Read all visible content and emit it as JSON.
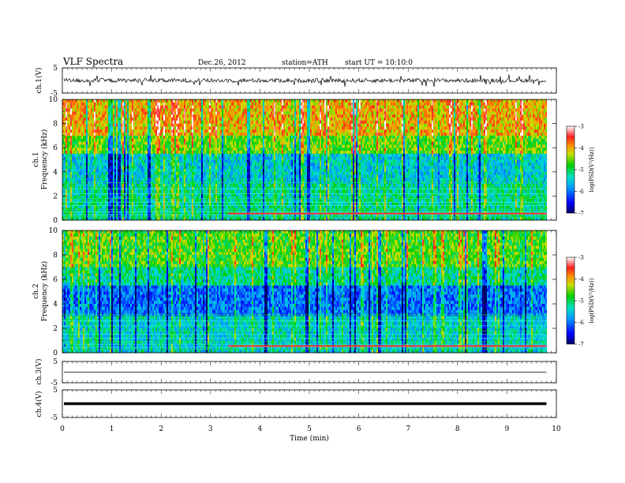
{
  "header": {
    "title": "VLF  Spectra",
    "date": "Dec.26, 2012",
    "station": "station=ATH",
    "start": "start  UT  =    10:10:0"
  },
  "chart_data": {
    "type": "heatmap",
    "xlabel": "Time  (min)",
    "xlim": [
      0,
      10
    ],
    "x_ticks": [
      "0",
      "1",
      "2",
      "3",
      "4",
      "5",
      "6",
      "7",
      "8",
      "9",
      "10"
    ],
    "data_extent_min": 9.8,
    "panels": [
      {
        "id": "ch1-waveform",
        "type": "line",
        "ylabel": "ch.1(V)",
        "ylim": [
          -5,
          5
        ],
        "y_ticks": [
          "5",
          "-5"
        ],
        "baseline": 0,
        "amplitude_range": [
          -2.5,
          2.5
        ]
      },
      {
        "id": "ch1-spectrogram",
        "type": "heatmap",
        "ylabel_top": "ch.1",
        "ylabel": "Frequency  (kHz)",
        "ylim": [
          0,
          10
        ],
        "y_ticks": [
          "0",
          "2",
          "4",
          "6",
          "8",
          "10"
        ],
        "colorbar": {
          "label": "log(PSD(V²/Hz))",
          "range": [
            -7,
            -3
          ],
          "ticks": [
            "-3",
            "-4",
            "-5",
            "-6",
            "-7"
          ]
        }
      },
      {
        "id": "ch2-spectrogram",
        "type": "heatmap",
        "ylabel_top": "ch.2",
        "ylabel": "Frequency  (kHz)",
        "ylim": [
          0,
          10
        ],
        "y_ticks": [
          "0",
          "2",
          "4",
          "6",
          "8",
          "10"
        ],
        "colorbar": {
          "label": "log(PSD(V²/Hz))",
          "range": [
            -7,
            -3
          ],
          "ticks": [
            "-3",
            "-4",
            "-5",
            "-6",
            "-7"
          ]
        }
      },
      {
        "id": "ch3-waveform",
        "type": "line",
        "ylabel": "ch.3(V)",
        "ylim": [
          -5,
          5
        ],
        "y_ticks": [
          "5",
          "-5"
        ],
        "baseline": 0,
        "amplitude_range": [
          -0.1,
          0.1
        ]
      },
      {
        "id": "ch4-waveform",
        "type": "line",
        "ylabel": "ch.4(V)",
        "ylim": [
          -5,
          5
        ],
        "y_ticks": [
          "5",
          "-5"
        ],
        "baseline": 0,
        "amplitude_range": [
          -0.5,
          0.5
        ]
      }
    ]
  }
}
